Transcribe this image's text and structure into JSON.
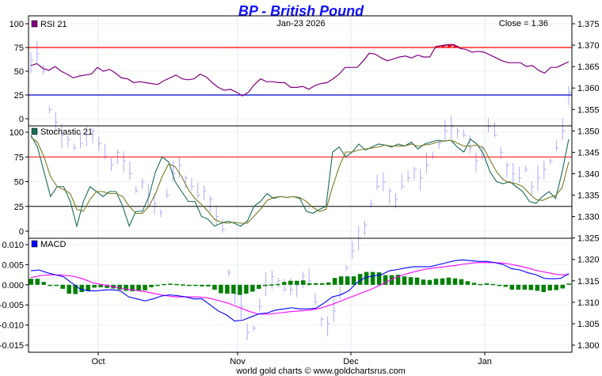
{
  "chart_data": [
    {
      "type": "line",
      "title": "BP  -  British Pound",
      "date": "Jan-23  2026",
      "close_label": "Close = 1.36",
      "legend": "RSI 21",
      "legend_color": "#800080",
      "ylim": [
        0,
        100
      ],
      "yticks": [
        100,
        75,
        50,
        25,
        0
      ],
      "overbought": 75,
      "oversold": 25,
      "overbought_color": "#ff0000",
      "oversold_color": "#0000cc",
      "values": [
        56,
        58,
        53,
        51,
        55,
        50,
        47,
        43,
        45,
        46,
        47,
        54,
        50,
        52,
        48,
        43,
        42,
        38,
        39,
        38,
        37,
        36,
        40,
        43,
        46,
        42,
        41,
        42,
        47,
        44,
        38,
        33,
        30,
        31,
        28,
        24,
        28,
        36,
        42,
        39,
        39,
        38,
        38,
        33,
        33,
        34,
        31,
        35,
        37,
        38,
        42,
        47,
        54,
        54,
        54,
        61,
        69,
        68,
        64,
        61,
        63,
        65,
        66,
        64,
        67,
        65,
        65,
        76,
        77,
        78,
        78,
        74,
        73,
        70,
        71,
        70,
        67,
        64,
        61,
        59,
        59,
        59,
        55,
        56,
        51,
        48,
        54,
        54,
        57,
        60
      ]
    },
    {
      "type": "line",
      "legend": "Stochastic 21",
      "ylim": [
        0,
        100
      ],
      "yticks": [
        100,
        75,
        50,
        25,
        0
      ],
      "upper": 75,
      "lower": 25,
      "series": [
        {
          "name": "%K",
          "color": "#1a6b5a",
          "values": [
            97,
            85,
            60,
            35,
            45,
            45,
            30,
            5,
            30,
            45,
            40,
            35,
            40,
            40,
            25,
            5,
            20,
            20,
            35,
            60,
            75,
            70,
            50,
            40,
            30,
            30,
            15,
            12,
            5,
            8,
            10,
            8,
            5,
            10,
            25,
            30,
            38,
            33,
            35,
            34,
            35,
            33,
            20,
            18,
            22,
            25,
            80,
            85,
            75,
            80,
            88,
            82,
            85,
            88,
            87,
            85,
            88,
            86,
            90,
            83,
            88,
            90,
            92,
            91,
            92,
            85,
            80,
            93,
            88,
            78,
            60,
            50,
            48,
            50,
            45,
            40,
            30,
            28,
            35,
            40,
            33,
            60,
            93
          ]
        },
        {
          "name": "%D",
          "color": "#7a7a20",
          "values": [
            95,
            90,
            75,
            55,
            45,
            42,
            38,
            22,
            20,
            32,
            40,
            40,
            38,
            38,
            35,
            25,
            18,
            18,
            25,
            38,
            55,
            68,
            65,
            55,
            42,
            33,
            27,
            20,
            12,
            9,
            8,
            9,
            8,
            8,
            15,
            22,
            31,
            34,
            35,
            34,
            35,
            34,
            30,
            24,
            20,
            22,
            45,
            65,
            80,
            80,
            82,
            83,
            84,
            85,
            87,
            86,
            86,
            86,
            88,
            86,
            87,
            88,
            90,
            91,
            92,
            89,
            86,
            86,
            87,
            84,
            72,
            60,
            52,
            49,
            48,
            45,
            38,
            32,
            31,
            34,
            36,
            44,
            70
          ]
        }
      ]
    },
    {
      "type": "line",
      "legend": "MACD",
      "ylim": [
        -0.017,
        0.011
      ],
      "yticks": [
        0.01,
        0.005,
        0.0,
        -0.005,
        -0.01,
        -0.015
      ],
      "series": [
        {
          "name": "MACD",
          "color": "#0000ff",
          "values": [
            0.0035,
            0.0037,
            0.003,
            0.0025,
            0.002,
            0.0005,
            -0.001,
            -0.0015,
            -0.0015,
            -0.0013,
            -0.0012,
            -0.0015,
            -0.003,
            -0.0035,
            -0.004,
            -0.0035,
            -0.0028,
            -0.0025,
            -0.0027,
            -0.003,
            -0.0035,
            -0.0035,
            -0.005,
            -0.0065,
            -0.0075,
            -0.009,
            -0.0088,
            -0.008,
            -0.0072,
            -0.007,
            -0.0063,
            -0.006,
            -0.0057,
            -0.006,
            -0.006,
            -0.0058,
            -0.0045,
            -0.003,
            -0.0025,
            -0.0015,
            0.0005,
            0.0018,
            0.0022,
            0.0025,
            0.0035,
            0.0038,
            0.0042,
            0.0045,
            0.0045,
            0.0045,
            0.005,
            0.0055,
            0.006,
            0.0062,
            0.006,
            0.0058,
            0.0058,
            0.0055,
            0.005,
            0.004,
            0.0037,
            0.003,
            0.0025,
            0.0016,
            0.0015,
            0.0016,
            0.0028
          ]
        },
        {
          "name": "Signal",
          "color": "#ff00ff",
          "values": [
            0.0018,
            0.0023,
            0.0025,
            0.0024,
            0.0022,
            0.0015,
            0.0005,
            0,
            -0.0005,
            -0.001,
            -0.0013,
            -0.0017,
            -0.0022,
            -0.0027,
            -0.003,
            -0.003,
            -0.003,
            -0.0032,
            -0.0038,
            -0.0045,
            -0.0055,
            -0.0065,
            -0.0073,
            -0.0073,
            -0.007,
            -0.0067,
            -0.0065,
            -0.0063,
            -0.0058,
            -0.005,
            -0.004,
            -0.003,
            -0.002,
            -0.001,
            0.0002,
            0.0015,
            0.0025,
            0.0032,
            0.0038,
            0.0042,
            0.0045,
            0.0048,
            0.0052,
            0.0055,
            0.0055,
            0.0055,
            0.0053,
            0.0048,
            0.0042,
            0.0035,
            0.003,
            0.0025,
            0.0025
          ]
        },
        {
          "name": "Histogram",
          "color": "#008000",
          "type": "bar",
          "values": [
            0.0015,
            0.0015,
            0.0007,
            -0.0001,
            -0.0001,
            -0.001,
            -0.0022,
            -0.0023,
            -0.0018,
            -0.0015,
            -0.0007,
            -0.0006,
            -0.0008,
            -0.0009,
            -0.0012,
            -0.0015,
            -0.0016,
            -0.0015,
            -0.0014,
            -0.0006,
            -0.0003,
            0.0002,
            0.0003,
            0.0002,
            0.0001,
            -0.0001,
            -0.0002,
            -0.0004,
            -0.0004,
            -0.0012,
            -0.0021,
            -0.0022,
            -0.0022,
            -0.0025,
            -0.0022,
            -0.0017,
            -0.001,
            -0.0003,
            0.0001,
            0.0002,
            0.0007,
            0.001,
            0.001,
            0.0011,
            0.0004,
            0.0004,
            0.0004,
            0.0006,
            0.0017,
            0.0021,
            0.0021,
            0.0021,
            0.0027,
            0.0032,
            0.0032,
            0.0031,
            0.0024,
            0.0024,
            0.0025,
            0.0021,
            0.0019,
            0.0018,
            0.0013,
            0.0012,
            0.0015,
            0.0016,
            0.0018,
            0.0016,
            0.0014,
            0.0009,
            0.0005,
            0.0002,
            0.0004,
            0.0002,
            0,
            -0.0005,
            -0.0012,
            -0.0012,
            -0.0012,
            -0.0013,
            -0.0015,
            -0.0018,
            -0.0014,
            -0.0013,
            -0.0009,
            0.0003
          ]
        }
      ]
    },
    {
      "type": "ohlc",
      "name": "BP price",
      "color": "#aaaaff",
      "ylim": [
        1.2985,
        1.3768
      ],
      "yticks": [
        "1.375",
        "1.370",
        "1.365",
        "1.360",
        "1.355",
        "1.350",
        "1.345",
        "1.340",
        "1.335",
        "1.330",
        "1.325",
        "1.320",
        "1.315",
        "1.310",
        "1.305",
        "1.300"
      ],
      "closes": [
        1.3665,
        1.368,
        1.364,
        1.355,
        1.352,
        1.349,
        1.348,
        1.346,
        1.347,
        1.349,
        1.35,
        1.347,
        1.344,
        1.342,
        1.345,
        1.343,
        1.34,
        1.336,
        1.338,
        1.335,
        1.333,
        1.331,
        1.335,
        1.34,
        1.342,
        1.339,
        1.337,
        1.335,
        1.336,
        1.334,
        1.33,
        1.327,
        1.317,
        1.312,
        1.309,
        1.303,
        1.304,
        1.309,
        1.314,
        1.316,
        1.315,
        1.313,
        1.313,
        1.314,
        1.316,
        1.315,
        1.31,
        1.306,
        1.305,
        1.308,
        1.312,
        1.318,
        1.322,
        1.325,
        1.328,
        1.333,
        1.337,
        1.338,
        1.336,
        1.334,
        1.337,
        1.339,
        1.341,
        1.339,
        1.342,
        1.344,
        1.347,
        1.35,
        1.351,
        1.35,
        1.349,
        1.346,
        1.343,
        1.346,
        1.351,
        1.349,
        1.345,
        1.342,
        1.34,
        1.339,
        1.341,
        1.337,
        1.339,
        1.341,
        1.343,
        1.346,
        1.35,
        1.359
      ],
      "range": 0.003
    },
    {
      "type": "axis",
      "xticks": [
        "Oct",
        "Nov",
        "Dec",
        "Jan"
      ],
      "footer": "world gold charts © www.goldchartsrus.com"
    }
  ]
}
